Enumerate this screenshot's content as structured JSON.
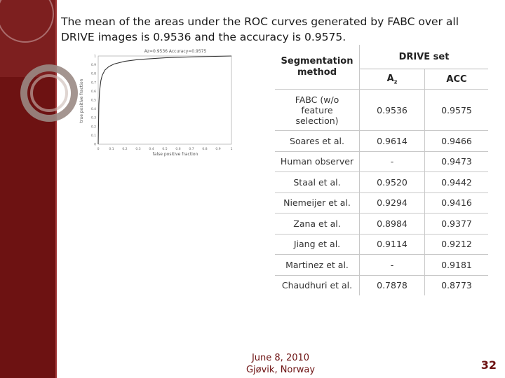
{
  "headline": "The mean of the areas under the ROC curves generated by FABC over all DRIVE images is 0.9536 and the accuracy is 0.9575.",
  "roc_plot": {
    "title": "Az=0.9536 Accuracy=0.9575",
    "xlabel": "false positive fraction",
    "ylabel": "true positive fraction",
    "x_ticks": [
      "0",
      "0.1",
      "0.2",
      "0.3",
      "0.4",
      "0.5",
      "0.6",
      "0.7",
      "0.8",
      "0.9",
      "1"
    ],
    "y_ticks": [
      "0",
      "0.1",
      "0.2",
      "0.3",
      "0.4",
      "0.5",
      "0.6",
      "0.7",
      "0.8",
      "0.9",
      "1"
    ],
    "curve": {
      "x": [
        0,
        0.005,
        0.01,
        0.02,
        0.03,
        0.05,
        0.08,
        0.12,
        0.2,
        0.3,
        0.5,
        0.7,
        1.0
      ],
      "y": [
        0,
        0.45,
        0.6,
        0.72,
        0.78,
        0.84,
        0.88,
        0.91,
        0.94,
        0.96,
        0.98,
        0.99,
        1.0
      ]
    }
  },
  "table": {
    "header_method": "Segmentation method",
    "header_group": "DRIVE set",
    "col_az": "Az",
    "col_az_sub": "z",
    "col_acc": "ACC",
    "rows": [
      {
        "method": "FABC (w/o feature selection)",
        "az": "0.9536",
        "acc": "0.9575"
      },
      {
        "method": "Soares et al.",
        "az": "0.9614",
        "acc": "0.9466"
      },
      {
        "method": "Human observer",
        "az": "-",
        "acc": "0.9473"
      },
      {
        "method": "Staal et al.",
        "az": "0.9520",
        "acc": "0.9442"
      },
      {
        "method": "Niemeijer et al.",
        "az": "0.9294",
        "acc": "0.9416"
      },
      {
        "method": "Zana et al.",
        "az": "0.8984",
        "acc": "0.9377"
      },
      {
        "method": "Jiang et al.",
        "az": "0.9114",
        "acc": "0.9212"
      },
      {
        "method": "Martinez et al.",
        "az": "-",
        "acc": "0.9181"
      },
      {
        "method": "Chaudhuri et al.",
        "az": "0.7878",
        "acc": "0.8773"
      }
    ]
  },
  "footer": {
    "date": "June 8, 2010",
    "place": "Gjøvik, Norway"
  },
  "page_number": "32",
  "colors": {
    "sidebar": "#6d1212",
    "accent": "#6d1212"
  }
}
